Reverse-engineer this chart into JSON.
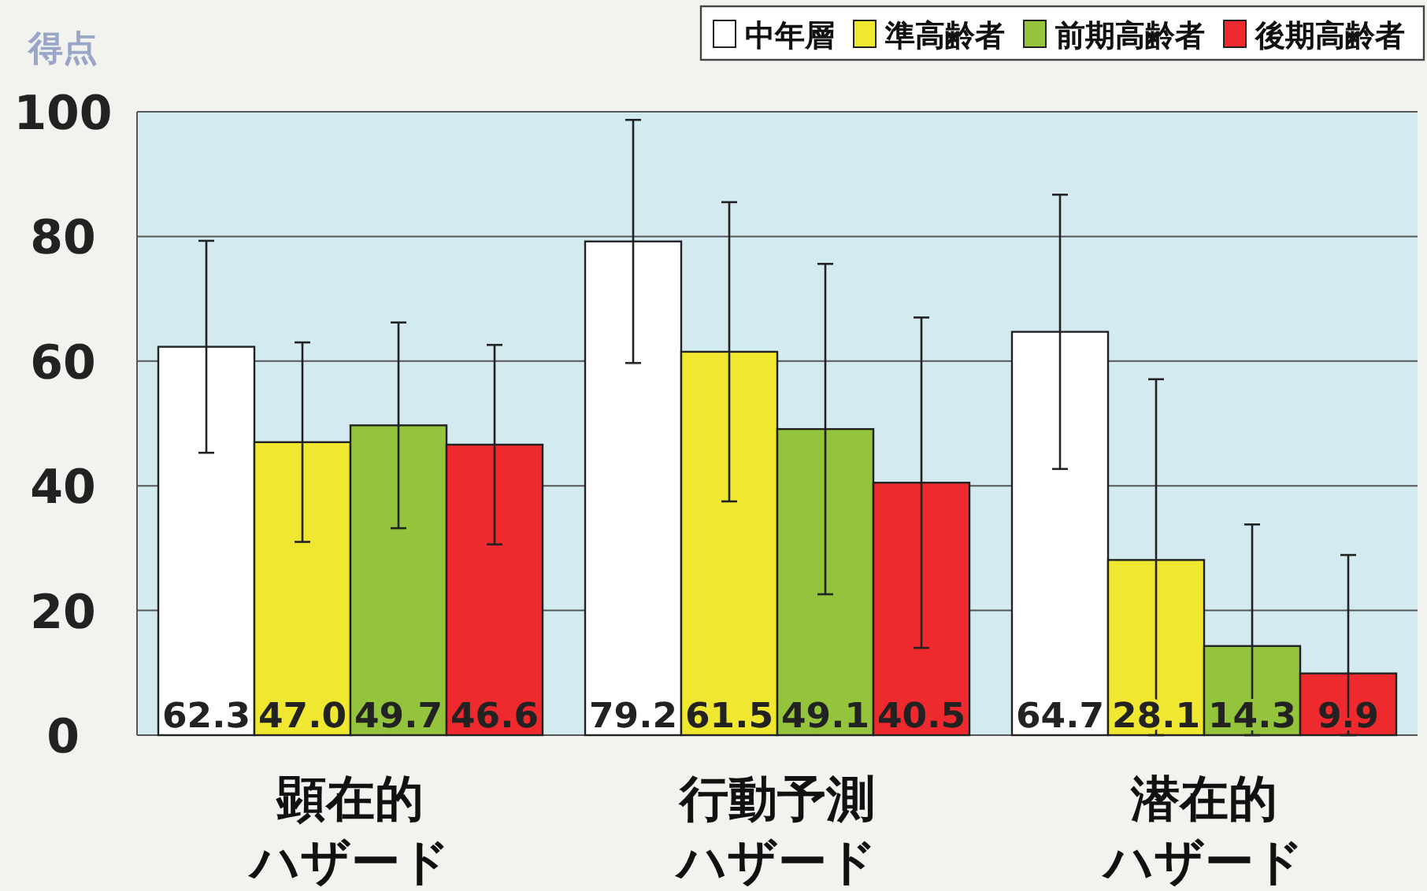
{
  "chart_data": {
    "type": "bar",
    "ylabel": "得点",
    "categories": [
      "顕在的ハザード",
      "行動予測ハザード",
      "潜在的ハザード"
    ],
    "series": [
      {
        "name": "中年層",
        "color": "#ffffff",
        "values": [
          62.3,
          79.2,
          64.7
        ],
        "errors": [
          17,
          19.5,
          22
        ],
        "value_labels": [
          "62.3",
          "79.2",
          "64.7"
        ]
      },
      {
        "name": "準高齢者",
        "color": "#f0e830",
        "values": [
          47.0,
          61.5,
          28.1
        ],
        "errors": [
          16,
          24,
          [
            0,
            57.1
          ]
        ],
        "value_labels": [
          "47.0",
          "61.5",
          "28.1"
        ]
      },
      {
        "name": "前期高齢者",
        "color": "#94c43c",
        "values": [
          49.7,
          49.1,
          14.3
        ],
        "errors": [
          16.5,
          26.5,
          [
            0,
            33.8
          ]
        ],
        "value_labels": [
          "49.7",
          "49.1",
          "14.3"
        ]
      },
      {
        "name": "後期高齢者",
        "color": "#ee2a2e",
        "values": [
          46.6,
          40.5,
          9.9
        ],
        "errors": [
          16,
          26.5,
          [
            0,
            28.9
          ]
        ],
        "value_labels": [
          "46.6",
          "40.5",
          "9.9"
        ]
      }
    ],
    "ylim": [
      0,
      100
    ],
    "yticks": [
      0,
      20,
      40,
      60,
      80,
      100
    ],
    "grid": "y",
    "legend": "top right"
  }
}
